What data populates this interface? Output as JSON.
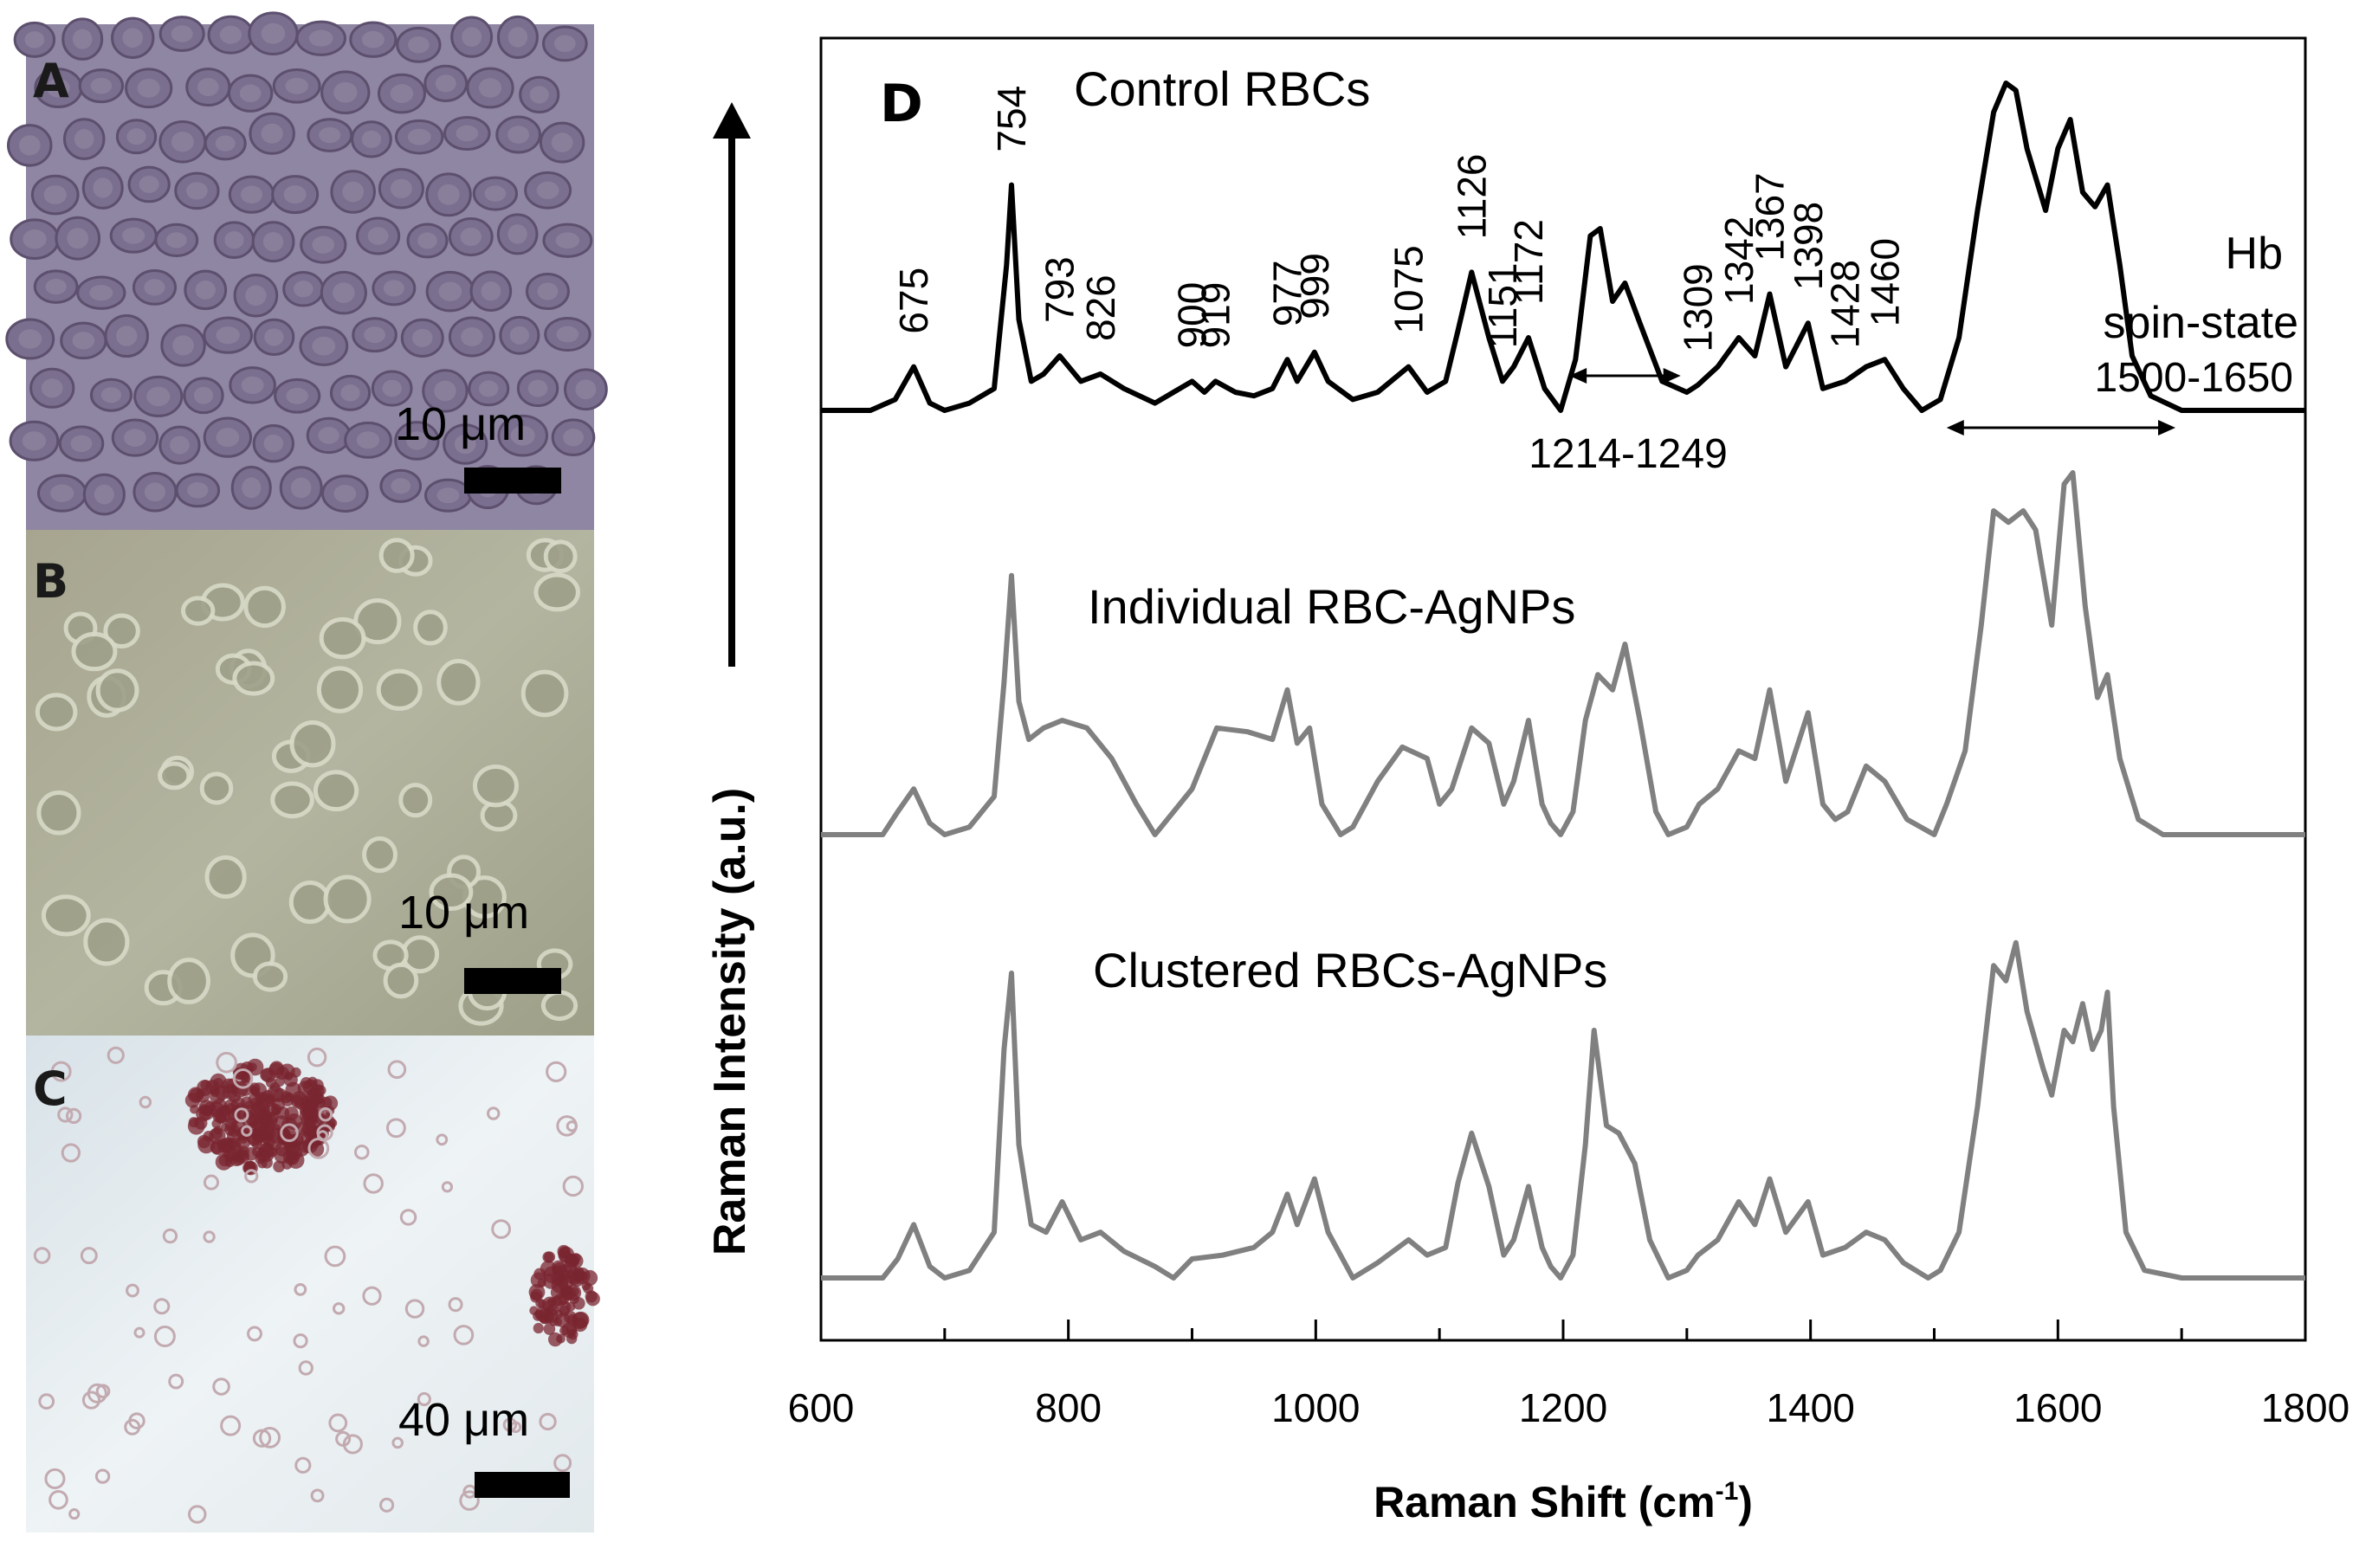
{
  "panels": {
    "a": {
      "label": "A",
      "scale_label": "10 μm",
      "colors": [
        "#8d84a0",
        "#7a6f8e",
        "#5d4f6e",
        "#a89fb5"
      ]
    },
    "b": {
      "label": "B",
      "scale_label": "10 μm",
      "colors": [
        "#b0b298",
        "#9ea089",
        "#d8dac8",
        "#8f9479"
      ]
    },
    "c": {
      "label": "C",
      "scale_label": "40 μm",
      "colors": [
        "#e3ebef",
        "#d2dde3",
        "#7a2630",
        "#c2aab0"
      ]
    }
  },
  "chart_data": {
    "type": "line",
    "panel_label": "D",
    "xlabel": "Raman Shift (cm",
    "xlabel_sup": "-1",
    "xlabel_end": ")",
    "ylabel": "Raman Intensity (a.u.)",
    "xlim": [
      600,
      1800
    ],
    "xticks": [
      "600",
      "800",
      "1000",
      "1200",
      "1400",
      "1600",
      "1800"
    ],
    "xtick_values": [
      600,
      800,
      1000,
      1200,
      1400,
      1600,
      1800
    ],
    "yaxis_arrow": true,
    "grid": false,
    "series": [
      {
        "name": "Control RBCs",
        "color": "#000000",
        "baseline": 0,
        "points": [
          [
            600,
            0.0
          ],
          [
            640,
            0.0
          ],
          [
            660,
            0.03
          ],
          [
            675,
            0.12
          ],
          [
            688,
            0.02
          ],
          [
            700,
            0.0
          ],
          [
            720,
            0.02
          ],
          [
            740,
            0.06
          ],
          [
            750,
            0.4
          ],
          [
            754,
            0.62
          ],
          [
            760,
            0.25
          ],
          [
            770,
            0.08
          ],
          [
            780,
            0.1
          ],
          [
            793,
            0.15
          ],
          [
            810,
            0.08
          ],
          [
            826,
            0.1
          ],
          [
            845,
            0.06
          ],
          [
            870,
            0.02
          ],
          [
            885,
            0.05
          ],
          [
            900,
            0.08
          ],
          [
            910,
            0.05
          ],
          [
            919,
            0.08
          ],
          [
            935,
            0.05
          ],
          [
            950,
            0.04
          ],
          [
            965,
            0.06
          ],
          [
            977,
            0.14
          ],
          [
            985,
            0.08
          ],
          [
            999,
            0.16
          ],
          [
            1010,
            0.08
          ],
          [
            1030,
            0.03
          ],
          [
            1050,
            0.05
          ],
          [
            1075,
            0.12
          ],
          [
            1090,
            0.05
          ],
          [
            1105,
            0.08
          ],
          [
            1115,
            0.22
          ],
          [
            1126,
            0.38
          ],
          [
            1140,
            0.2
          ],
          [
            1151,
            0.08
          ],
          [
            1160,
            0.12
          ],
          [
            1172,
            0.2
          ],
          [
            1185,
            0.06
          ],
          [
            1198,
            0.0
          ],
          [
            1210,
            0.14
          ],
          [
            1222,
            0.48
          ],
          [
            1230,
            0.5
          ],
          [
            1240,
            0.3
          ],
          [
            1250,
            0.35
          ],
          [
            1262,
            0.24
          ],
          [
            1280,
            0.08
          ],
          [
            1300,
            0.05
          ],
          [
            1309,
            0.07
          ],
          [
            1325,
            0.12
          ],
          [
            1342,
            0.2
          ],
          [
            1355,
            0.15
          ],
          [
            1367,
            0.32
          ],
          [
            1380,
            0.12
          ],
          [
            1398,
            0.24
          ],
          [
            1410,
            0.06
          ],
          [
            1428,
            0.08
          ],
          [
            1445,
            0.12
          ],
          [
            1460,
            0.14
          ],
          [
            1475,
            0.06
          ],
          [
            1490,
            0.0
          ],
          [
            1505,
            0.03
          ],
          [
            1520,
            0.2
          ],
          [
            1535,
            0.55
          ],
          [
            1548,
            0.82
          ],
          [
            1558,
            0.9
          ],
          [
            1566,
            0.88
          ],
          [
            1575,
            0.72
          ],
          [
            1590,
            0.55
          ],
          [
            1600,
            0.72
          ],
          [
            1610,
            0.8
          ],
          [
            1620,
            0.6
          ],
          [
            1630,
            0.56
          ],
          [
            1640,
            0.62
          ],
          [
            1650,
            0.4
          ],
          [
            1660,
            0.15
          ],
          [
            1675,
            0.04
          ],
          [
            1700,
            0.0
          ],
          [
            1800,
            0.0
          ]
        ]
      },
      {
        "name": "Individual RBC-AgNPs",
        "color": "#808080",
        "baseline": 0,
        "points": [
          [
            600,
            0.0
          ],
          [
            650,
            0.0
          ],
          [
            662,
            0.06
          ],
          [
            675,
            0.12
          ],
          [
            688,
            0.03
          ],
          [
            700,
            0.0
          ],
          [
            720,
            0.02
          ],
          [
            740,
            0.1
          ],
          [
            748,
            0.4
          ],
          [
            754,
            0.68
          ],
          [
            760,
            0.35
          ],
          [
            768,
            0.25
          ],
          [
            780,
            0.28
          ],
          [
            795,
            0.3
          ],
          [
            815,
            0.28
          ],
          [
            835,
            0.2
          ],
          [
            855,
            0.08
          ],
          [
            870,
            0.0
          ],
          [
            885,
            0.06
          ],
          [
            900,
            0.12
          ],
          [
            920,
            0.28
          ],
          [
            945,
            0.27
          ],
          [
            965,
            0.25
          ],
          [
            977,
            0.38
          ],
          [
            985,
            0.24
          ],
          [
            995,
            0.28
          ],
          [
            1005,
            0.08
          ],
          [
            1020,
            0.0
          ],
          [
            1030,
            0.02
          ],
          [
            1050,
            0.14
          ],
          [
            1070,
            0.23
          ],
          [
            1090,
            0.2
          ],
          [
            1100,
            0.08
          ],
          [
            1110,
            0.12
          ],
          [
            1126,
            0.28
          ],
          [
            1140,
            0.24
          ],
          [
            1152,
            0.08
          ],
          [
            1160,
            0.14
          ],
          [
            1172,
            0.3
          ],
          [
            1183,
            0.08
          ],
          [
            1190,
            0.03
          ],
          [
            1198,
            0.0
          ],
          [
            1208,
            0.06
          ],
          [
            1218,
            0.3
          ],
          [
            1228,
            0.42
          ],
          [
            1240,
            0.38
          ],
          [
            1250,
            0.5
          ],
          [
            1262,
            0.3
          ],
          [
            1275,
            0.06
          ],
          [
            1285,
            0.0
          ],
          [
            1300,
            0.02
          ],
          [
            1310,
            0.08
          ],
          [
            1325,
            0.12
          ],
          [
            1342,
            0.22
          ],
          [
            1355,
            0.2
          ],
          [
            1367,
            0.38
          ],
          [
            1380,
            0.14
          ],
          [
            1398,
            0.32
          ],
          [
            1410,
            0.08
          ],
          [
            1420,
            0.04
          ],
          [
            1430,
            0.06
          ],
          [
            1445,
            0.18
          ],
          [
            1460,
            0.14
          ],
          [
            1478,
            0.04
          ],
          [
            1500,
            0.0
          ],
          [
            1510,
            0.08
          ],
          [
            1525,
            0.22
          ],
          [
            1538,
            0.55
          ],
          [
            1548,
            0.85
          ],
          [
            1560,
            0.82
          ],
          [
            1572,
            0.85
          ],
          [
            1582,
            0.8
          ],
          [
            1595,
            0.55
          ],
          [
            1605,
            0.92
          ],
          [
            1612,
            0.95
          ],
          [
            1622,
            0.6
          ],
          [
            1632,
            0.36
          ],
          [
            1640,
            0.42
          ],
          [
            1650,
            0.2
          ],
          [
            1665,
            0.04
          ],
          [
            1685,
            0.0
          ],
          [
            1800,
            0.0
          ]
        ]
      },
      {
        "name": "Clustered RBCs-AgNPs",
        "color": "#808080",
        "baseline": 0,
        "points": [
          [
            600,
            0.0
          ],
          [
            650,
            0.0
          ],
          [
            662,
            0.05
          ],
          [
            675,
            0.14
          ],
          [
            688,
            0.03
          ],
          [
            700,
            0.0
          ],
          [
            720,
            0.02
          ],
          [
            740,
            0.12
          ],
          [
            748,
            0.6
          ],
          [
            754,
            0.8
          ],
          [
            760,
            0.35
          ],
          [
            770,
            0.14
          ],
          [
            782,
            0.12
          ],
          [
            795,
            0.2
          ],
          [
            810,
            0.1
          ],
          [
            826,
            0.12
          ],
          [
            845,
            0.07
          ],
          [
            870,
            0.03
          ],
          [
            885,
            0.0
          ],
          [
            900,
            0.05
          ],
          [
            925,
            0.06
          ],
          [
            950,
            0.08
          ],
          [
            965,
            0.12
          ],
          [
            977,
            0.22
          ],
          [
            985,
            0.14
          ],
          [
            999,
            0.26
          ],
          [
            1010,
            0.12
          ],
          [
            1030,
            0.0
          ],
          [
            1050,
            0.04
          ],
          [
            1075,
            0.1
          ],
          [
            1090,
            0.06
          ],
          [
            1105,
            0.08
          ],
          [
            1115,
            0.25
          ],
          [
            1126,
            0.38
          ],
          [
            1140,
            0.24
          ],
          [
            1152,
            0.06
          ],
          [
            1160,
            0.1
          ],
          [
            1172,
            0.24
          ],
          [
            1183,
            0.08
          ],
          [
            1190,
            0.03
          ],
          [
            1198,
            0.0
          ],
          [
            1208,
            0.06
          ],
          [
            1218,
            0.35
          ],
          [
            1225,
            0.65
          ],
          [
            1235,
            0.4
          ],
          [
            1245,
            0.38
          ],
          [
            1258,
            0.3
          ],
          [
            1270,
            0.1
          ],
          [
            1285,
            0.0
          ],
          [
            1300,
            0.02
          ],
          [
            1309,
            0.06
          ],
          [
            1325,
            0.1
          ],
          [
            1342,
            0.2
          ],
          [
            1355,
            0.14
          ],
          [
            1367,
            0.26
          ],
          [
            1380,
            0.12
          ],
          [
            1398,
            0.2
          ],
          [
            1410,
            0.06
          ],
          [
            1428,
            0.08
          ],
          [
            1445,
            0.12
          ],
          [
            1460,
            0.1
          ],
          [
            1475,
            0.04
          ],
          [
            1495,
            0.0
          ],
          [
            1505,
            0.02
          ],
          [
            1520,
            0.12
          ],
          [
            1535,
            0.45
          ],
          [
            1548,
            0.82
          ],
          [
            1558,
            0.78
          ],
          [
            1566,
            0.88
          ],
          [
            1575,
            0.7
          ],
          [
            1588,
            0.55
          ],
          [
            1595,
            0.48
          ],
          [
            1605,
            0.65
          ],
          [
            1612,
            0.62
          ],
          [
            1620,
            0.72
          ],
          [
            1628,
            0.6
          ],
          [
            1635,
            0.65
          ],
          [
            1640,
            0.75
          ],
          [
            1645,
            0.45
          ],
          [
            1655,
            0.12
          ],
          [
            1670,
            0.02
          ],
          [
            1700,
            0.0
          ],
          [
            1800,
            0.0
          ]
        ]
      }
    ],
    "peak_labels": [
      "675",
      "754",
      "793",
      "826",
      "900",
      "919",
      "977",
      "999",
      "1075",
      "1126",
      "1151",
      "1172",
      "1309",
      "1342",
      "1367",
      "1398",
      "1428",
      "1460"
    ],
    "peak_positions": [
      675,
      754,
      793,
      826,
      900,
      919,
      977,
      999,
      1075,
      1126,
      1151,
      1172,
      1309,
      1342,
      1367,
      1398,
      1428,
      1460
    ],
    "annotations": {
      "range1_label": "1214-1249",
      "range1": [
        1205,
        1295
      ],
      "hb_label": "Hb",
      "spin_label": "spin-state",
      "range2_label": "1500-1650",
      "range2": [
        1510,
        1695
      ]
    }
  }
}
